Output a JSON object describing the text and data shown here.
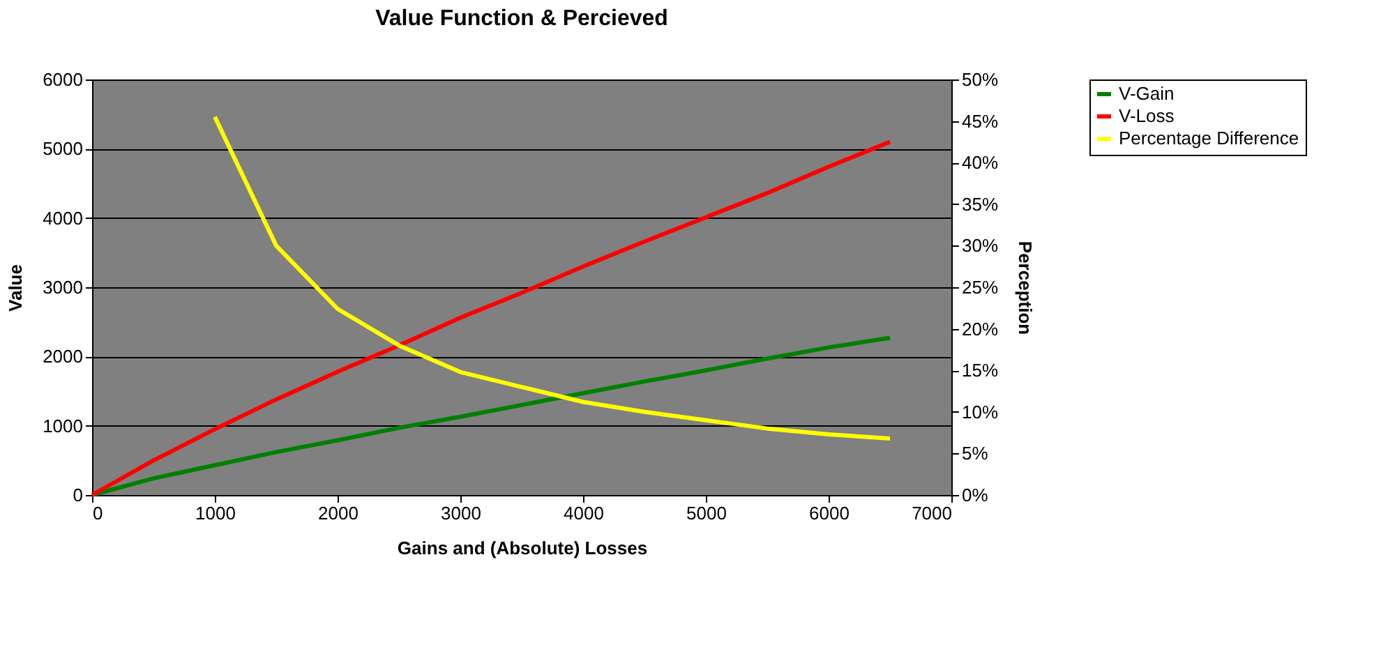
{
  "chart_data": {
    "type": "line",
    "title": "Value Function & Percieved",
    "xlabel": "Gains and (Absolute) Losses",
    "ylabel": "Value",
    "y2label": "Perception",
    "x": [
      0,
      500,
      1000,
      1500,
      2000,
      2500,
      3000,
      3500,
      4000,
      4500,
      5000,
      5500,
      6000,
      6500
    ],
    "series": [
      {
        "name": "V-Gain",
        "color": "#008000",
        "values": [
          0,
          240,
          430,
          620,
          790,
          970,
          1130,
          1300,
          1470,
          1640,
          1800,
          1970,
          2130,
          2270
        ]
      },
      {
        "name": "V-Loss",
        "color": "#ff0000",
        "values": [
          0,
          500,
          950,
          1380,
          1780,
          2160,
          2560,
          2920,
          3300,
          3660,
          4010,
          4360,
          4740,
          5100
        ]
      },
      {
        "name": "Percentage Difference",
        "color": "#ffff00",
        "axis": "y2",
        "values": [
          null,
          null,
          45.5,
          30.0,
          22.4,
          18.0,
          14.8,
          13.0,
          11.2,
          10.0,
          9.0,
          8.0,
          7.3,
          6.8
        ]
      }
    ],
    "xlim": [
      0,
      7000
    ],
    "xticks": [
      0,
      1000,
      2000,
      3000,
      4000,
      5000,
      6000,
      7000
    ],
    "ylim": [
      0,
      6000
    ],
    "yticks": [
      0,
      1000,
      2000,
      3000,
      4000,
      5000,
      6000
    ],
    "y2lim": [
      0,
      50
    ],
    "y2ticks": [
      {
        "value": 0,
        "label": "0%"
      },
      {
        "value": 5,
        "label": "5%"
      },
      {
        "value": 10,
        "label": "10%"
      },
      {
        "value": 15,
        "label": "15%"
      },
      {
        "value": 20,
        "label": "20%"
      },
      {
        "value": 25,
        "label": "25%"
      },
      {
        "value": 30,
        "label": "30%"
      },
      {
        "value": 35,
        "label": "35%"
      },
      {
        "value": 40,
        "label": "40%"
      },
      {
        "value": 45,
        "label": "45%"
      },
      {
        "value": 50,
        "label": "50%"
      }
    ],
    "grid": "y",
    "legend": "top right",
    "marker": "none",
    "line_style": "solid"
  }
}
